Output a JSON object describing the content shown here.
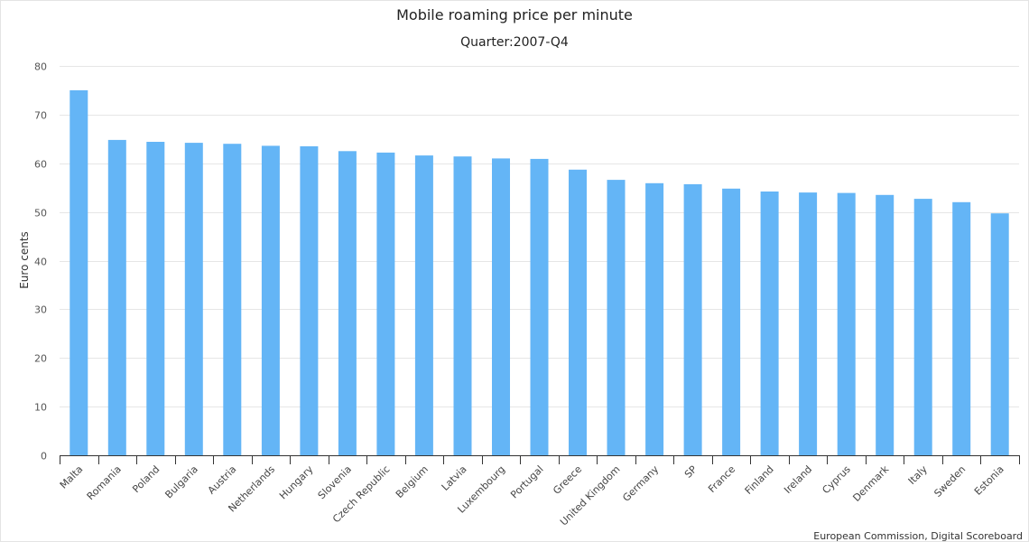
{
  "chart_data": {
    "type": "bar",
    "title": "Mobile roaming price per minute",
    "subtitle": "Quarter:2007-Q4",
    "xlabel": "",
    "ylabel": "Euro cents",
    "ylim": [
      0,
      80
    ],
    "yticks": [
      0,
      10,
      20,
      30,
      40,
      50,
      60,
      70,
      80
    ],
    "grid": true,
    "legend": "none",
    "bar_color": "#64b5f6",
    "categories": [
      "Malta",
      "Romania",
      "Poland",
      "Bulgaria",
      "Austria",
      "Netherlands",
      "Hungary",
      "Slovenia",
      "Czech Republic",
      "Belgium",
      "Latvia",
      "Luxembourg",
      "Portugal",
      "Greece",
      "United Kingdom",
      "Germany",
      "SP",
      "France",
      "Finland",
      "Ireland",
      "Cyprus",
      "Denmark",
      "Italy",
      "Sweden",
      "Estonia"
    ],
    "values": [
      75.0,
      64.8,
      64.4,
      64.2,
      64.0,
      63.6,
      63.5,
      62.5,
      62.2,
      61.6,
      61.4,
      61.0,
      60.9,
      58.7,
      56.6,
      55.9,
      55.7,
      54.8,
      54.2,
      54.0,
      53.9,
      53.5,
      52.7,
      52.0,
      49.7
    ],
    "credit": "European Commission, Digital Scoreboard"
  }
}
